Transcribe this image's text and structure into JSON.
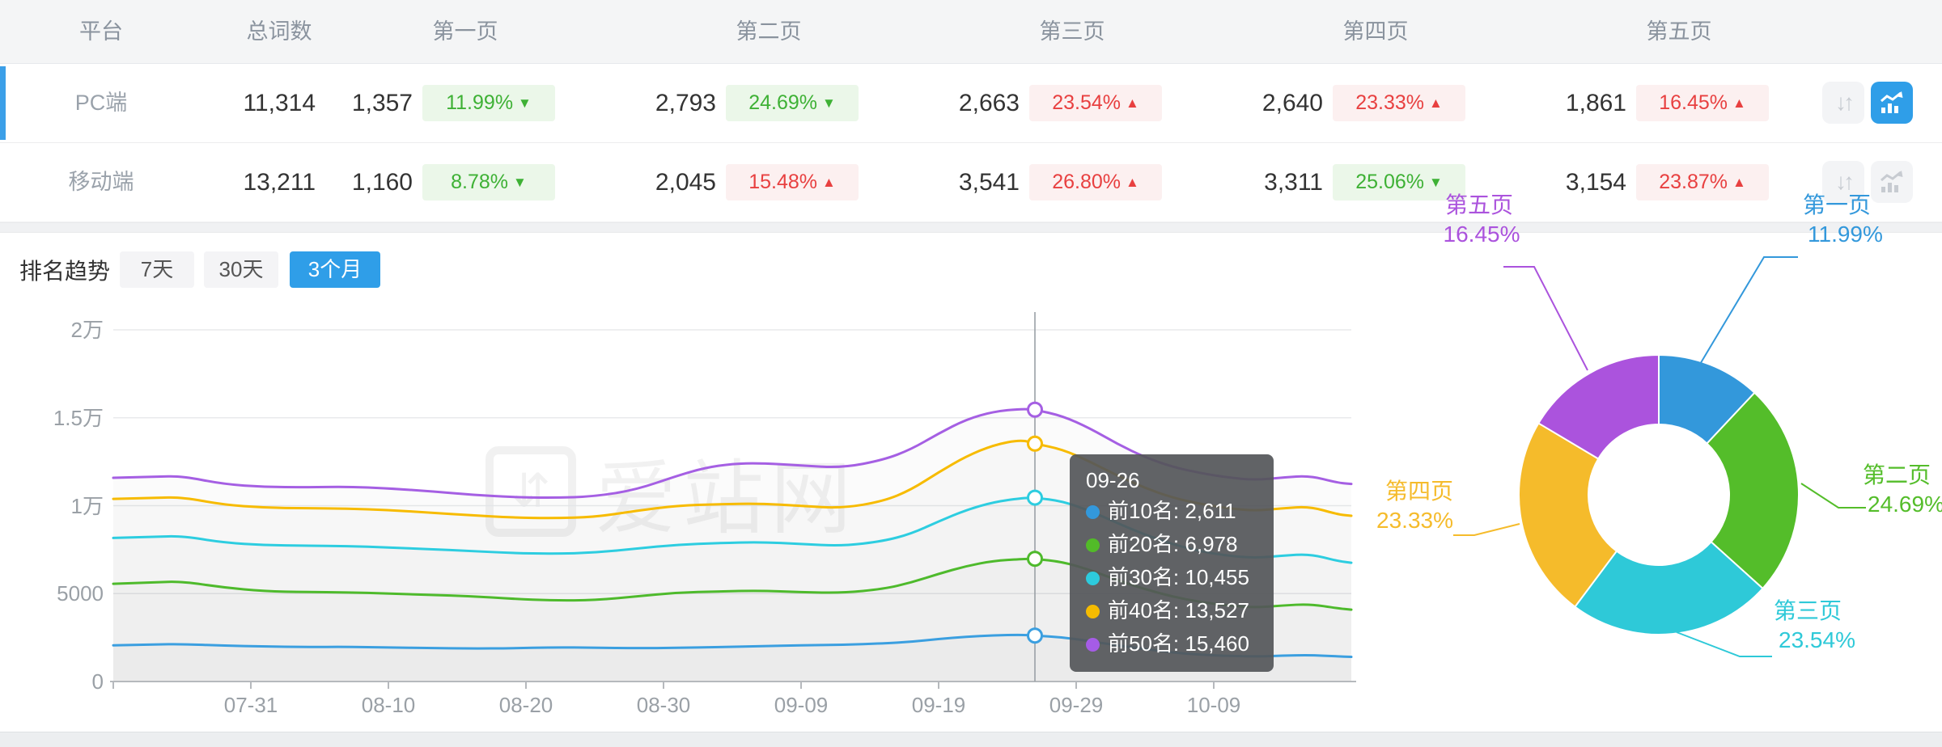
{
  "table": {
    "headers": [
      "平台",
      "总词数",
      "第一页",
      "第二页",
      "第三页",
      "第四页",
      "第五页"
    ],
    "rows": [
      {
        "platform": "PC端",
        "total": "11,314",
        "selected": true,
        "pages": [
          {
            "count": "1,357",
            "pct": "11.99%",
            "arrow": "▼",
            "tone": "green"
          },
          {
            "count": "2,793",
            "pct": "24.69%",
            "arrow": "▼",
            "tone": "green"
          },
          {
            "count": "2,663",
            "pct": "23.54%",
            "arrow": "▲",
            "tone": "red"
          },
          {
            "count": "2,640",
            "pct": "23.33%",
            "arrow": "▲",
            "tone": "red"
          },
          {
            "count": "1,861",
            "pct": "16.45%",
            "arrow": "▲",
            "tone": "red"
          }
        ],
        "trend_button_active": true
      },
      {
        "platform": "移动端",
        "total": "13,211",
        "selected": false,
        "pages": [
          {
            "count": "1,160",
            "pct": "8.78%",
            "arrow": "▼",
            "tone": "green"
          },
          {
            "count": "2,045",
            "pct": "15.48%",
            "arrow": "▲",
            "tone": "red"
          },
          {
            "count": "3,541",
            "pct": "26.80%",
            "arrow": "▲",
            "tone": "red"
          },
          {
            "count": "3,311",
            "pct": "25.06%",
            "arrow": "▼",
            "tone": "green"
          },
          {
            "count": "3,154",
            "pct": "23.87%",
            "arrow": "▲",
            "tone": "red"
          }
        ],
        "trend_button_active": false
      }
    ]
  },
  "trend": {
    "title": "排名趋势",
    "tabs": [
      {
        "label": "7天",
        "active": false
      },
      {
        "label": "30天",
        "active": false
      },
      {
        "label": "3个月",
        "active": true
      }
    ]
  },
  "watermark": {
    "glyph": "⇵",
    "text": "爱站网"
  },
  "colors": {
    "accent_blue": "#2f9ee8",
    "badge_green_text": "#3eb135",
    "badge_red_text": "#e84040",
    "axis_text": "#9aa0a6",
    "grid_line": "#e8eaec",
    "axis_line": "#b6b9bd",
    "tooltip_bg": "rgba(84,86,89,0.92)"
  },
  "chart_data": [
    {
      "type": "line",
      "title": "排名趋势 (3个月)",
      "grid": true,
      "legend_position": "none",
      "ylim": [
        0,
        20000
      ],
      "y_ticks": [
        "0",
        "5000",
        "1万",
        "1.5万",
        "2万"
      ],
      "y_tick_values": [
        0,
        5000,
        10000,
        15000,
        20000
      ],
      "x_range_days": [
        0,
        90
      ],
      "x_ticks": [
        {
          "label": "07-31",
          "day": 10
        },
        {
          "label": "08-10",
          "day": 20
        },
        {
          "label": "08-20",
          "day": 30
        },
        {
          "label": "08-30",
          "day": 40
        },
        {
          "label": "09-09",
          "day": 50
        },
        {
          "label": "09-19",
          "day": 60
        },
        {
          "label": "09-29",
          "day": 70
        },
        {
          "label": "10-09",
          "day": 80
        }
      ],
      "series": [
        {
          "name": "前10名",
          "color": "#3b9fe0",
          "points": [
            [
              0,
              2060
            ],
            [
              3,
              2110
            ],
            [
              5,
              2130
            ],
            [
              8,
              2040
            ],
            [
              11,
              1990
            ],
            [
              14,
              1960
            ],
            [
              17,
              1975
            ],
            [
              20,
              1935
            ],
            [
              23,
              1905
            ],
            [
              26,
              1875
            ],
            [
              29,
              1890
            ],
            [
              32,
              1945
            ],
            [
              35,
              1925
            ],
            [
              38,
              1895
            ],
            [
              41,
              1915
            ],
            [
              44,
              1955
            ],
            [
              47,
              2005
            ],
            [
              50,
              2060
            ],
            [
              53,
              2085
            ],
            [
              56,
              2165
            ],
            [
              58,
              2255
            ],
            [
              60,
              2420
            ],
            [
              62,
              2545
            ],
            [
              64,
              2625
            ],
            [
              66,
              2660
            ],
            [
              67,
              2611
            ],
            [
              69,
              2520
            ],
            [
              71,
              2300
            ],
            [
              73,
              2050
            ],
            [
              75,
              1850
            ],
            [
              77,
              1650
            ],
            [
              79,
              1520
            ],
            [
              81,
              1460
            ],
            [
              83,
              1420
            ],
            [
              85,
              1470
            ],
            [
              87,
              1505
            ],
            [
              89,
              1430
            ],
            [
              90,
              1400
            ]
          ]
        },
        {
          "name": "前20名",
          "color": "#4eba2c",
          "points": [
            [
              0,
              5560
            ],
            [
              3,
              5645
            ],
            [
              5,
              5690
            ],
            [
              8,
              5350
            ],
            [
              11,
              5130
            ],
            [
              14,
              5090
            ],
            [
              17,
              5075
            ],
            [
              20,
              5000
            ],
            [
              23,
              4930
            ],
            [
              26,
              4855
            ],
            [
              29,
              4705
            ],
            [
              32,
              4605
            ],
            [
              35,
              4625
            ],
            [
              38,
              4835
            ],
            [
              41,
              5060
            ],
            [
              44,
              5125
            ],
            [
              47,
              5170
            ],
            [
              50,
              5085
            ],
            [
              53,
              5035
            ],
            [
              56,
              5265
            ],
            [
              58,
              5625
            ],
            [
              60,
              6125
            ],
            [
              62,
              6565
            ],
            [
              64,
              6865
            ],
            [
              66,
              6960
            ],
            [
              67,
              6978
            ],
            [
              69,
              6805
            ],
            [
              71,
              6355
            ],
            [
              73,
              5755
            ],
            [
              75,
              5255
            ],
            [
              77,
              4825
            ],
            [
              79,
              4525
            ],
            [
              81,
              4325
            ],
            [
              83,
              4205
            ],
            [
              85,
              4325
            ],
            [
              87,
              4405
            ],
            [
              89,
              4165
            ],
            [
              90,
              4085
            ]
          ]
        },
        {
          "name": "前30名",
          "color": "#2dcde0",
          "points": [
            [
              0,
              8165
            ],
            [
              3,
              8235
            ],
            [
              5,
              8275
            ],
            [
              8,
              7905
            ],
            [
              11,
              7755
            ],
            [
              14,
              7725
            ],
            [
              17,
              7705
            ],
            [
              20,
              7625
            ],
            [
              23,
              7525
            ],
            [
              26,
              7425
            ],
            [
              29,
              7305
            ],
            [
              32,
              7265
            ],
            [
              35,
              7325
            ],
            [
              38,
              7555
            ],
            [
              41,
              7785
            ],
            [
              44,
              7875
            ],
            [
              47,
              7935
            ],
            [
              50,
              7825
            ],
            [
              53,
              7705
            ],
            [
              56,
              7985
            ],
            [
              58,
              8405
            ],
            [
              60,
              9105
            ],
            [
              62,
              9755
            ],
            [
              64,
              10205
            ],
            [
              66,
              10425
            ],
            [
              67,
              10455
            ],
            [
              69,
              10255
            ],
            [
              71,
              9705
            ],
            [
              73,
              9005
            ],
            [
              75,
              8355
            ],
            [
              77,
              7805
            ],
            [
              79,
              7405
            ],
            [
              81,
              7155
            ],
            [
              83,
              7025
            ],
            [
              85,
              7155
            ],
            [
              87,
              7255
            ],
            [
              89,
              6855
            ],
            [
              90,
              6755
            ]
          ]
        },
        {
          "name": "前40名",
          "color": "#f7bb00",
          "points": [
            [
              0,
              10385
            ],
            [
              3,
              10445
            ],
            [
              5,
              10485
            ],
            [
              8,
              10055
            ],
            [
              11,
              9885
            ],
            [
              14,
              9855
            ],
            [
              17,
              9835
            ],
            [
              20,
              9755
            ],
            [
              23,
              9605
            ],
            [
              26,
              9455
            ],
            [
              29,
              9325
            ],
            [
              32,
              9285
            ],
            [
              35,
              9355
            ],
            [
              38,
              9705
            ],
            [
              41,
              10005
            ],
            [
              44,
              10085
            ],
            [
              47,
              10125
            ],
            [
              50,
              9985
            ],
            [
              53,
              9855
            ],
            [
              56,
              10255
            ],
            [
              58,
              10905
            ],
            [
              60,
              11905
            ],
            [
              62,
              12805
            ],
            [
              64,
              13455
            ],
            [
              66,
              13755
            ],
            [
              67,
              13527
            ],
            [
              69,
              13205
            ],
            [
              71,
              12505
            ],
            [
              73,
              11705
            ],
            [
              75,
              11005
            ],
            [
              77,
              10455
            ],
            [
              79,
              10105
            ],
            [
              81,
              9855
            ],
            [
              83,
              9705
            ],
            [
              85,
              9855
            ],
            [
              87,
              9955
            ],
            [
              89,
              9505
            ],
            [
              90,
              9425
            ]
          ]
        },
        {
          "name": "前50名",
          "color": "#a55fe3",
          "points": [
            [
              0,
              11585
            ],
            [
              3,
              11645
            ],
            [
              5,
              11685
            ],
            [
              8,
              11225
            ],
            [
              11,
              11065
            ],
            [
              14,
              11045
            ],
            [
              17,
              11085
            ],
            [
              20,
              10985
            ],
            [
              23,
              10825
            ],
            [
              26,
              10625
            ],
            [
              29,
              10485
            ],
            [
              32,
              10445
            ],
            [
              35,
              10525
            ],
            [
              38,
              10905
            ],
            [
              41,
              11705
            ],
            [
              43,
              12155
            ],
            [
              45,
              12385
            ],
            [
              47,
              12425
            ],
            [
              50,
              12285
            ],
            [
              53,
              12155
            ],
            [
              56,
              12605
            ],
            [
              58,
              13205
            ],
            [
              60,
              14105
            ],
            [
              62,
              14905
            ],
            [
              64,
              15355
            ],
            [
              66,
              15505
            ],
            [
              67,
              15460
            ],
            [
              69,
              15105
            ],
            [
              71,
              14405
            ],
            [
              73,
              13505
            ],
            [
              75,
              12755
            ],
            [
              77,
              12205
            ],
            [
              79,
              11855
            ],
            [
              81,
              11605
            ],
            [
              83,
              11455
            ],
            [
              85,
              11605
            ],
            [
              87,
              11705
            ],
            [
              89,
              11305
            ],
            [
              90,
              11235
            ]
          ]
        }
      ],
      "crosshair": {
        "date": "09-26",
        "day": 67,
        "values": [
          2611,
          6978,
          10455,
          13527,
          15460
        ]
      },
      "tooltip": {
        "title": "09-26",
        "rows": [
          {
            "label": "前10名:",
            "value": "2,611",
            "color": "#3398db"
          },
          {
            "label": "前20名:",
            "value": "6,978",
            "color": "#52bb28"
          },
          {
            "label": "前30名:",
            "value": "10,455",
            "color": "#2dcbdd"
          },
          {
            "label": "前40名:",
            "value": "13,527",
            "color": "#f5bb00"
          },
          {
            "label": "前50名:",
            "value": "15,460",
            "color": "#a55ce6"
          }
        ]
      }
    },
    {
      "type": "donut",
      "start_angle": "top",
      "direction": "clockwise",
      "slices": [
        {
          "label": "第一页",
          "pct": 11.99,
          "display": "11.99%",
          "color": "#3398db"
        },
        {
          "label": "第二页",
          "pct": 24.69,
          "display": "24.69%",
          "color": "#54bd2a"
        },
        {
          "label": "第三页",
          "pct": 23.54,
          "display": "23.54%",
          "color": "#2ec9d8"
        },
        {
          "label": "第四页",
          "pct": 23.33,
          "display": "23.33%",
          "color": "#f5bb2b"
        },
        {
          "label": "第五页",
          "pct": 16.45,
          "display": "16.45%",
          "color": "#ab53dd"
        }
      ]
    }
  ]
}
